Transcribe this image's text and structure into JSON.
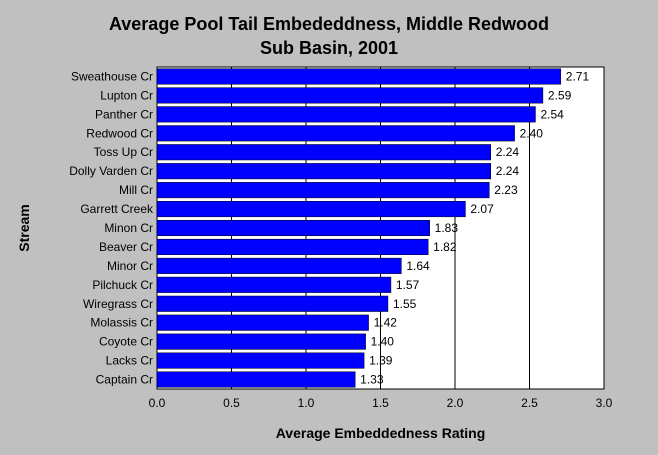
{
  "chart_data": {
    "type": "bar",
    "orientation": "horizontal",
    "title": [
      "Average Pool Tail Embededdness, Middle Redwood",
      "Sub Basin, 2001"
    ],
    "xlabel": "Average Embeddedness Rating",
    "ylabel": "Stream",
    "xlim": [
      0,
      3.0
    ],
    "xticks": [
      "0.0",
      "0.5",
      "1.0",
      "1.5",
      "2.0",
      "2.5",
      "3.0"
    ],
    "grid": "vertical",
    "categories": [
      "Sweathouse Cr",
      "Lupton Cr",
      "Panther Cr",
      "Redwood Cr",
      "Toss Up Cr",
      "Dolly Varden Cr",
      "Mill Cr",
      "Garrett Creek",
      "Minon Cr",
      "Beaver Cr",
      "Minor Cr",
      "Pilchuck Cr",
      "Wiregrass Cr",
      "Molassis Cr",
      "Coyote Cr",
      "Lacks Cr",
      "Captain Cr"
    ],
    "values": [
      2.71,
      2.59,
      2.54,
      2.4,
      2.24,
      2.24,
      2.23,
      2.07,
      1.83,
      1.82,
      1.64,
      1.57,
      1.55,
      1.42,
      1.4,
      1.39,
      1.33
    ],
    "value_labels": [
      "2.71",
      "2.59",
      "2.54",
      "2.40",
      "2.24",
      "2.24",
      "2.23",
      "2.07",
      "1.83",
      "1.82",
      "1.64",
      "1.57",
      "1.55",
      "1.42",
      "1.40",
      "1.39",
      "1.33"
    ],
    "colors": {
      "bar": "#0000ff",
      "plot_bg": "#ffffff",
      "page_bg": "#c0c0c0"
    }
  }
}
